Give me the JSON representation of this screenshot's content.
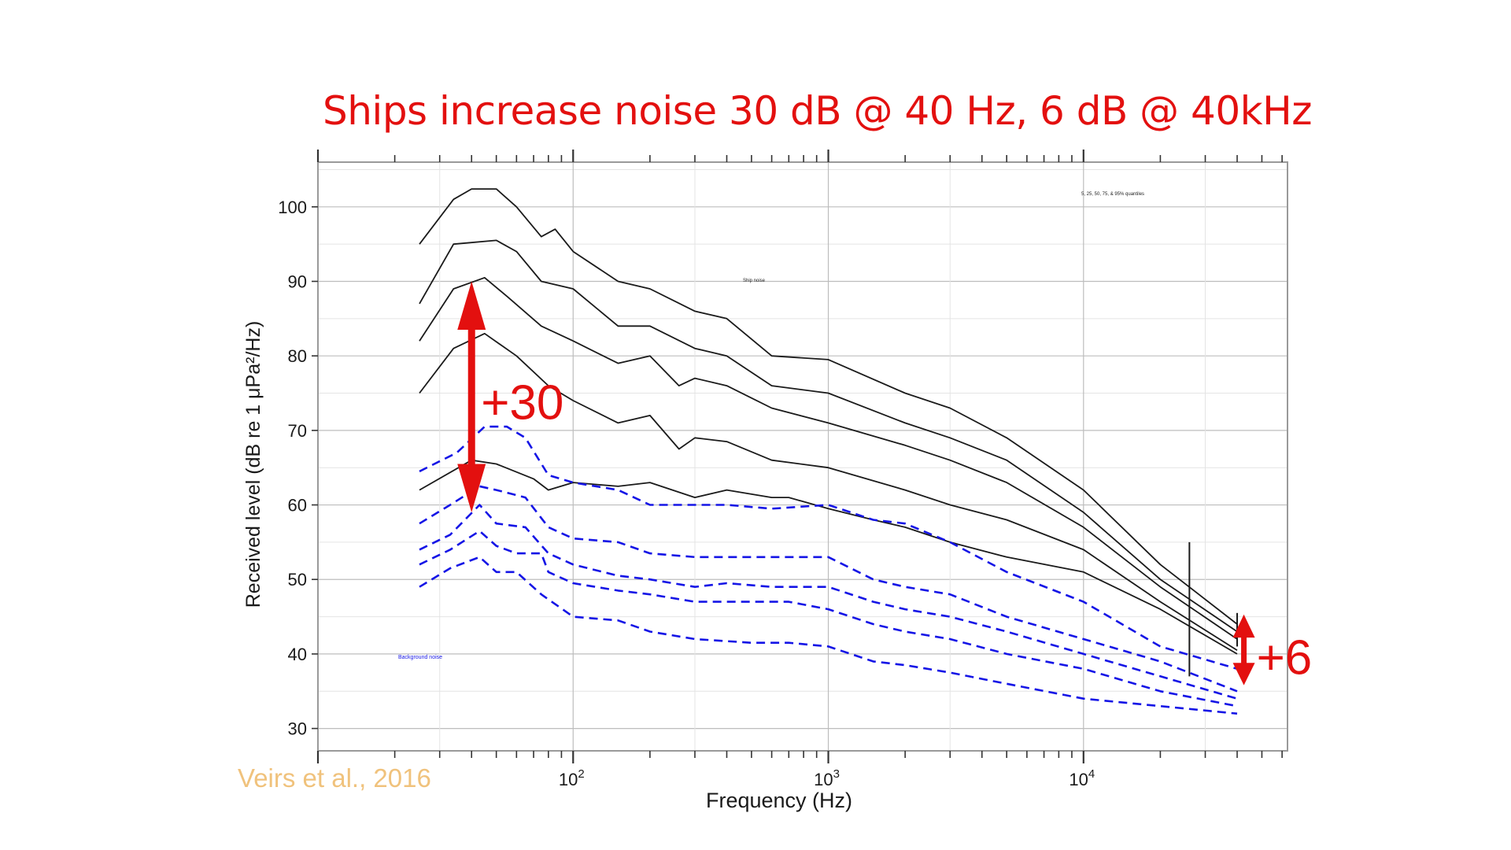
{
  "slide": {
    "title": "Ships increase noise 30 dB @ 40 Hz, 6 dB @ 40kHz",
    "citation": "Veirs et al., 2016"
  },
  "annotations": {
    "low_freq_increase": "+30",
    "high_freq_increase": "+6",
    "color": "#e3100f"
  },
  "chart_data": {
    "type": "line",
    "xlabel": "Frequency (Hz)",
    "ylabel": "Received level (dB re 1 μPa²/Hz)",
    "x_scale": "log",
    "xlim": [
      10,
      63000
    ],
    "ylim": [
      27,
      106
    ],
    "x_ticks": [
      {
        "base": "10",
        "exp": "2"
      },
      {
        "base": "10",
        "exp": "3"
      },
      {
        "base": "10",
        "exp": "4"
      }
    ],
    "y_ticks": [
      30,
      40,
      50,
      60,
      70,
      80,
      90,
      100
    ],
    "grid": true,
    "legend_note": "5, 25, 50, 75, & 95% quantiles",
    "group_labels": {
      "ship": "Ship noise",
      "background": "Background noise"
    },
    "colors": {
      "ship": "#1a1a1a",
      "background": "#1515e6"
    },
    "series": [
      {
        "group": "ship",
        "quantile": 95,
        "points": [
          [
            25,
            95
          ],
          [
            34,
            101
          ],
          [
            40,
            102.4
          ],
          [
            50,
            102.4
          ],
          [
            60,
            100
          ],
          [
            75,
            96
          ],
          [
            85,
            97
          ],
          [
            100,
            94
          ],
          [
            150,
            90
          ],
          [
            200,
            89
          ],
          [
            300,
            86
          ],
          [
            400,
            85
          ],
          [
            600,
            80
          ],
          [
            1000,
            79.5
          ],
          [
            2000,
            75
          ],
          [
            3000,
            73
          ],
          [
            5000,
            69
          ],
          [
            10000,
            62
          ],
          [
            20000,
            52
          ],
          [
            40000,
            44
          ]
        ]
      },
      {
        "group": "ship",
        "quantile": 75,
        "points": [
          [
            25,
            87
          ],
          [
            34,
            95
          ],
          [
            50,
            95.5
          ],
          [
            60,
            94
          ],
          [
            75,
            90
          ],
          [
            100,
            89
          ],
          [
            150,
            84
          ],
          [
            200,
            84
          ],
          [
            300,
            81
          ],
          [
            400,
            80
          ],
          [
            600,
            76
          ],
          [
            1000,
            75
          ],
          [
            2000,
            71
          ],
          [
            3000,
            69
          ],
          [
            5000,
            66
          ],
          [
            10000,
            59
          ],
          [
            20000,
            50
          ],
          [
            40000,
            43
          ]
        ]
      },
      {
        "group": "ship",
        "quantile": 50,
        "points": [
          [
            25,
            82
          ],
          [
            34,
            89
          ],
          [
            45,
            90.5
          ],
          [
            55,
            88
          ],
          [
            75,
            84
          ],
          [
            100,
            82
          ],
          [
            150,
            79
          ],
          [
            200,
            80
          ],
          [
            260,
            76
          ],
          [
            300,
            77
          ],
          [
            400,
            76
          ],
          [
            600,
            73
          ],
          [
            1000,
            71
          ],
          [
            2000,
            68
          ],
          [
            3000,
            66
          ],
          [
            5000,
            63
          ],
          [
            10000,
            57
          ],
          [
            20000,
            49
          ],
          [
            40000,
            42
          ]
        ]
      },
      {
        "group": "ship",
        "quantile": 25,
        "points": [
          [
            25,
            75
          ],
          [
            34,
            81
          ],
          [
            45,
            83
          ],
          [
            60,
            80
          ],
          [
            80,
            76
          ],
          [
            100,
            74
          ],
          [
            150,
            71
          ],
          [
            200,
            72
          ],
          [
            260,
            67.5
          ],
          [
            300,
            69
          ],
          [
            400,
            68.5
          ],
          [
            600,
            66
          ],
          [
            1000,
            65
          ],
          [
            2000,
            62
          ],
          [
            3000,
            60
          ],
          [
            5000,
            58
          ],
          [
            10000,
            54
          ],
          [
            20000,
            47
          ],
          [
            40000,
            40.5
          ]
        ]
      },
      {
        "group": "ship",
        "quantile": 5,
        "points": [
          [
            25,
            62
          ],
          [
            40,
            66
          ],
          [
            50,
            65.5
          ],
          [
            70,
            63.5
          ],
          [
            80,
            62
          ],
          [
            100,
            63
          ],
          [
            150,
            62.5
          ],
          [
            200,
            63
          ],
          [
            300,
            61
          ],
          [
            400,
            62
          ],
          [
            600,
            61
          ],
          [
            700,
            61
          ],
          [
            1000,
            59.5
          ],
          [
            1500,
            58
          ],
          [
            2000,
            57
          ],
          [
            3000,
            55
          ],
          [
            5000,
            53
          ],
          [
            10000,
            51
          ],
          [
            20000,
            46
          ],
          [
            40000,
            40
          ]
        ]
      },
      {
        "group": "background",
        "quantile": 95,
        "points": [
          [
            25,
            64.5
          ],
          [
            35,
            67
          ],
          [
            45,
            70.5
          ],
          [
            55,
            70.5
          ],
          [
            65,
            69
          ],
          [
            80,
            64
          ],
          [
            100,
            63
          ],
          [
            150,
            62
          ],
          [
            200,
            60
          ],
          [
            300,
            60
          ],
          [
            400,
            60
          ],
          [
            600,
            59.5
          ],
          [
            1000,
            60
          ],
          [
            1500,
            58
          ],
          [
            2000,
            57.5
          ],
          [
            3000,
            55
          ],
          [
            5000,
            51
          ],
          [
            10000,
            47
          ],
          [
            20000,
            41
          ],
          [
            40000,
            38
          ]
        ]
      },
      {
        "group": "background",
        "quantile": 75,
        "points": [
          [
            25,
            57.5
          ],
          [
            33,
            60
          ],
          [
            43,
            62.5
          ],
          [
            50,
            62
          ],
          [
            65,
            61
          ],
          [
            80,
            57
          ],
          [
            100,
            55.5
          ],
          [
            150,
            55
          ],
          [
            200,
            53.5
          ],
          [
            300,
            53
          ],
          [
            500,
            53
          ],
          [
            700,
            53
          ],
          [
            1000,
            53
          ],
          [
            1500,
            50
          ],
          [
            2000,
            49
          ],
          [
            3000,
            48
          ],
          [
            5000,
            45
          ],
          [
            10000,
            42
          ],
          [
            20000,
            39
          ],
          [
            40000,
            35
          ]
        ]
      },
      {
        "group": "background",
        "quantile": 50,
        "points": [
          [
            25,
            54
          ],
          [
            33,
            56
          ],
          [
            43,
            60
          ],
          [
            50,
            57.5
          ],
          [
            65,
            57
          ],
          [
            80,
            53.5
          ],
          [
            100,
            52
          ],
          [
            150,
            50.5
          ],
          [
            200,
            50
          ],
          [
            300,
            49
          ],
          [
            400,
            49.5
          ],
          [
            600,
            49
          ],
          [
            1000,
            49
          ],
          [
            1500,
            47
          ],
          [
            2000,
            46
          ],
          [
            3000,
            45
          ],
          [
            5000,
            43
          ],
          [
            10000,
            40
          ],
          [
            20000,
            37
          ],
          [
            40000,
            34
          ]
        ]
      },
      {
        "group": "background",
        "quantile": 25,
        "points": [
          [
            25,
            52
          ],
          [
            33,
            54
          ],
          [
            43,
            56.5
          ],
          [
            50,
            54.5
          ],
          [
            60,
            53.5
          ],
          [
            75,
            53.5
          ],
          [
            80,
            51
          ],
          [
            100,
            49.5
          ],
          [
            150,
            48.5
          ],
          [
            200,
            48
          ],
          [
            300,
            47
          ],
          [
            500,
            47
          ],
          [
            700,
            47
          ],
          [
            1000,
            46
          ],
          [
            1500,
            44
          ],
          [
            2000,
            43
          ],
          [
            3000,
            42
          ],
          [
            5000,
            40
          ],
          [
            10000,
            38
          ],
          [
            20000,
            35
          ],
          [
            40000,
            33
          ]
        ]
      },
      {
        "group": "background",
        "quantile": 5,
        "points": [
          [
            25,
            49
          ],
          [
            33,
            51.5
          ],
          [
            43,
            53
          ],
          [
            50,
            51
          ],
          [
            60,
            51
          ],
          [
            75,
            48
          ],
          [
            100,
            45
          ],
          [
            150,
            44.5
          ],
          [
            200,
            43
          ],
          [
            300,
            42
          ],
          [
            500,
            41.5
          ],
          [
            700,
            41.5
          ],
          [
            1000,
            41
          ],
          [
            1500,
            39
          ],
          [
            2000,
            38.5
          ],
          [
            3000,
            37.5
          ],
          [
            5000,
            36
          ],
          [
            10000,
            34
          ],
          [
            20000,
            33
          ],
          [
            40000,
            32
          ]
        ]
      }
    ]
  }
}
